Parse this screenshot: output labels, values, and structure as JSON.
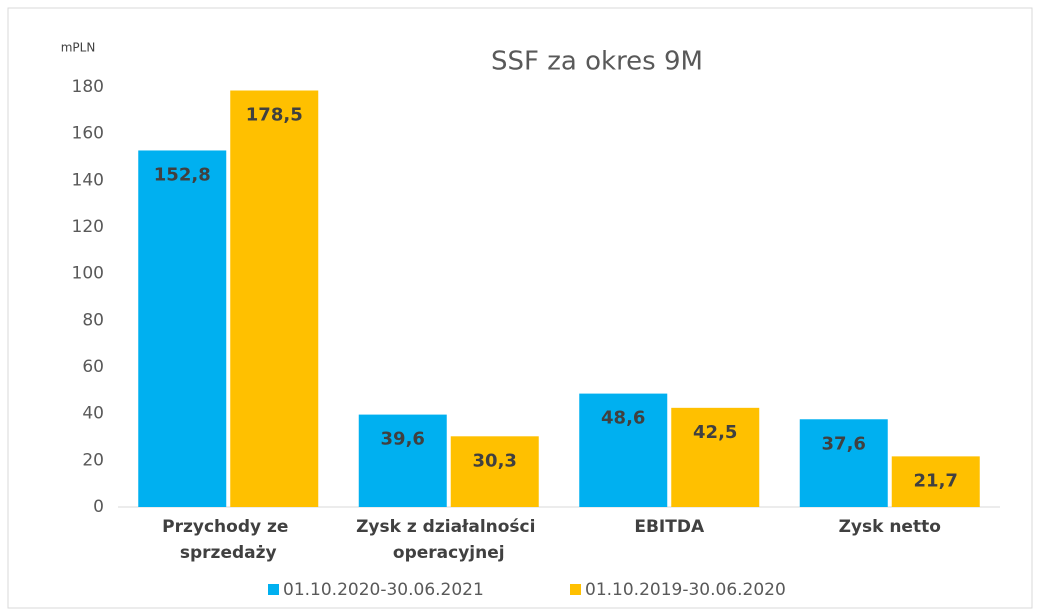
{
  "chart_data": {
    "type": "bar",
    "title": "SSF za okres 9M",
    "y_axis_label": "mPLN",
    "categories": [
      "Przychody ze sprzedaży",
      "Zysk z działalności operacyjnej",
      "EBITDA",
      "Zysk netto"
    ],
    "series": [
      {
        "name": "01.10.2020-30.06.2021",
        "color": "#00b0f0",
        "values": [
          152.8,
          39.6,
          48.6,
          37.6
        ],
        "value_labels": [
          "152,8",
          "39,6",
          "48,6",
          "37,6"
        ]
      },
      {
        "name": "01.10.2019-30.06.2020",
        "color": "#ffc000",
        "values": [
          178.5,
          30.3,
          42.5,
          21.7
        ],
        "value_labels": [
          "178,5",
          "30,3",
          "42,5",
          "21,7"
        ]
      }
    ],
    "ylim": [
      0,
      180
    ],
    "yticks": [
      0,
      20,
      40,
      60,
      80,
      100,
      120,
      140,
      160,
      180
    ],
    "grid": false,
    "legend": "bottom"
  }
}
